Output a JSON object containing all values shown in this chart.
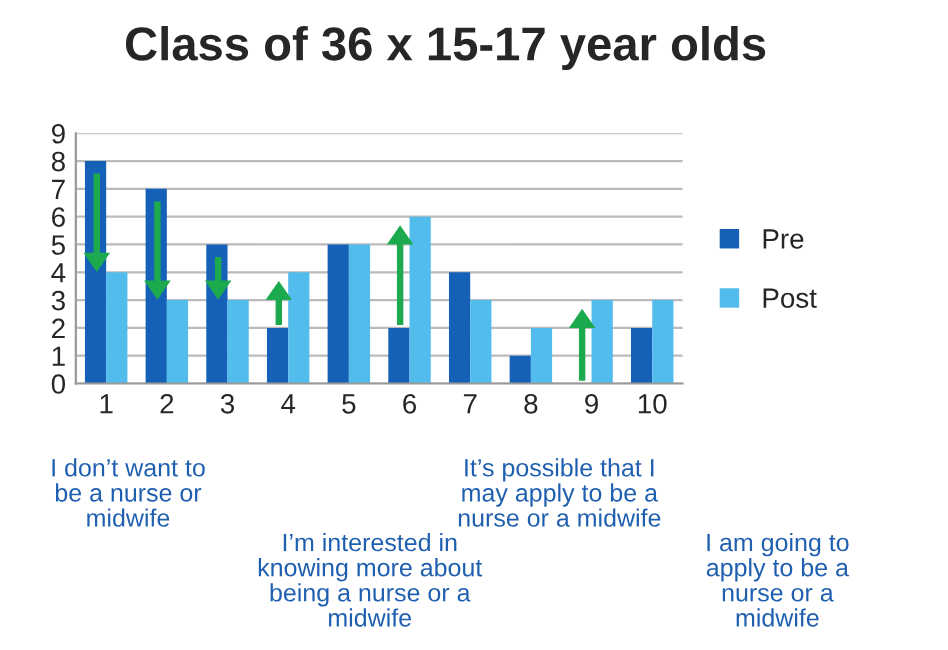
{
  "chart_data": {
    "type": "bar",
    "title": "Class of 36 x 15-17 year olds",
    "categories": [
      "1",
      "2",
      "3",
      "4",
      "5",
      "6",
      "7",
      "8",
      "9",
      "10"
    ],
    "series": [
      {
        "name": "Pre",
        "color": "#1561b8",
        "values": [
          8,
          7,
          5,
          2,
          5,
          2,
          4,
          1,
          0,
          2
        ]
      },
      {
        "name": "Post",
        "color": "#52bdec",
        "values": [
          4,
          3,
          3,
          4,
          5,
          6,
          3,
          2,
          3,
          3
        ]
      }
    ],
    "ylim": [
      0,
      9
    ],
    "yticks": [
      0,
      1,
      2,
      3,
      4,
      5,
      6,
      7,
      8,
      9
    ],
    "grid": "y",
    "legend": "right",
    "annotations": [
      "I don’t want to\nbe a nurse or\nmidwife",
      "I’m interested in\nknowing more about\nbeing a nurse or a\nmidwife",
      "It’s possible that I\nmay apply to be a\nnurse or a midwife",
      "I am going to\napply to be a\nnurse or a\nmidwife"
    ]
  }
}
